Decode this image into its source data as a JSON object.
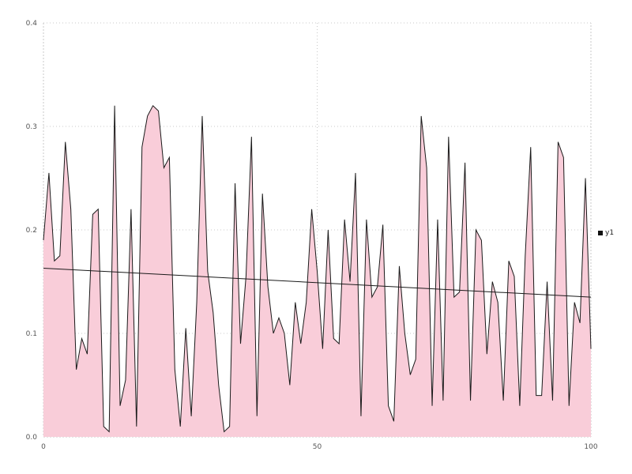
{
  "chart_data": {
    "type": "area",
    "title": "",
    "xlabel": "",
    "ylabel": "",
    "x_range": [
      0,
      100
    ],
    "y_range": [
      0,
      0.4
    ],
    "x_ticks": [
      "0",
      "50",
      "100"
    ],
    "x_tick_values": [
      0,
      50,
      100
    ],
    "y_ticks": [
      "0.0",
      "0.1",
      "0.2",
      "0.3",
      "0.4"
    ],
    "y_tick_values": [
      0,
      0.1,
      0.2,
      0.3,
      0.4
    ],
    "grid": "dotted",
    "legend_position": "right",
    "series": [
      {
        "name": "y1",
        "fill_color": "#f9cdd9",
        "line_color": "#1a1a1a",
        "values": [
          0.19,
          0.255,
          0.17,
          0.175,
          0.285,
          0.22,
          0.065,
          0.095,
          0.08,
          0.215,
          0.22,
          0.01,
          0.005,
          0.32,
          0.03,
          0.055,
          0.22,
          0.01,
          0.28,
          0.31,
          0.32,
          0.315,
          0.26,
          0.27,
          0.065,
          0.01,
          0.105,
          0.02,
          0.13,
          0.31,
          0.16,
          0.12,
          0.05,
          0.005,
          0.01,
          0.245,
          0.09,
          0.155,
          0.29,
          0.02,
          0.235,
          0.145,
          0.1,
          0.115,
          0.1,
          0.05,
          0.13,
          0.09,
          0.13,
          0.22,
          0.16,
          0.085,
          0.2,
          0.095,
          0.09,
          0.21,
          0.15,
          0.255,
          0.02,
          0.21,
          0.135,
          0.145,
          0.205,
          0.03,
          0.015,
          0.165,
          0.1,
          0.06,
          0.075,
          0.31,
          0.26,
          0.03,
          0.21,
          0.035,
          0.29,
          0.135,
          0.14,
          0.265,
          0.035,
          0.2,
          0.19,
          0.08,
          0.15,
          0.13,
          0.035,
          0.17,
          0.155,
          0.03,
          0.175,
          0.28,
          0.04,
          0.04,
          0.15,
          0.035,
          0.285,
          0.27,
          0.03,
          0.13,
          0.11,
          0.25,
          0.085
        ]
      }
    ],
    "trend_line": {
      "color": "#1a1a1a",
      "start_y": 0.163,
      "end_y": 0.135
    }
  },
  "legend": {
    "y1_label": "y1"
  },
  "colors": {
    "grid": "#c8c8c8",
    "tick_label": "#555555",
    "background": "#ffffff"
  }
}
